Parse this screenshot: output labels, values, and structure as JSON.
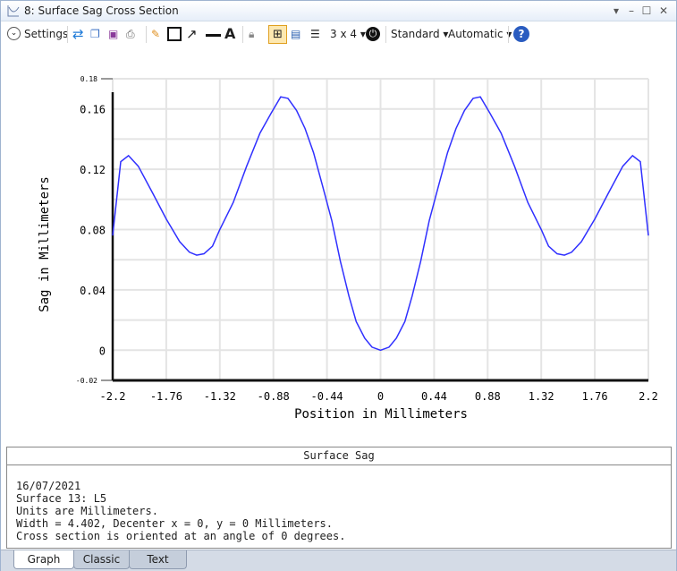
{
  "window": {
    "title": "8: Surface Sag Cross Section"
  },
  "toolbar": {
    "settings": "Settings",
    "layout": "3 x 4",
    "standard": "Standard",
    "automatic": "Automatic",
    "icons": [
      "chevron-down-circle-icon",
      "refresh-icon",
      "copy-icon",
      "save-icon",
      "print-icon",
      "pencil-icon",
      "rectangle-icon",
      "arrow-icon",
      "line-icon",
      "text-icon",
      "lock-icon",
      "fit-icon",
      "window-icon",
      "layers-icon",
      "power-icon",
      "help-icon"
    ]
  },
  "chart_data": {
    "type": "line",
    "title": "",
    "xlabel": "Position in Millimeters",
    "ylabel": "Sag in Millimeters",
    "xlim": [
      -2.2,
      2.2
    ],
    "ylim": [
      -0.02,
      0.18
    ],
    "xticks": [
      "-2.2",
      "-1.76",
      "-1.32",
      "-0.88",
      "-0.44",
      "0",
      "0.44",
      "0.88",
      "1.32",
      "1.76",
      "2.2"
    ],
    "xtick_values": [
      -2.2,
      -1.76,
      -1.32,
      -0.88,
      -0.44,
      0,
      0.44,
      0.88,
      1.32,
      1.76,
      2.2
    ],
    "yticks": [
      "0.16",
      "0.12",
      "0.08",
      "0.04",
      "0"
    ],
    "ytick_values": [
      0.16,
      0.12,
      0.08,
      0.04,
      0
    ],
    "ylim_labels": [
      "0.18",
      "-0.02"
    ],
    "grid": true,
    "color": "#3030ff",
    "x": [
      -2.2,
      -2.134,
      -2.07,
      -1.99,
      -1.87,
      -1.76,
      -1.65,
      -1.57,
      -1.51,
      -1.45,
      -1.38,
      -1.32,
      -1.21,
      -1.1,
      -0.99,
      -0.9,
      -0.82,
      -0.76,
      -0.69,
      -0.62,
      -0.55,
      -0.48,
      -0.4,
      -0.33,
      -0.26,
      -0.2,
      -0.13,
      -0.07,
      0,
      0.07,
      0.13,
      0.2,
      0.26,
      0.33,
      0.4,
      0.48,
      0.55,
      0.62,
      0.69,
      0.76,
      0.82,
      0.9,
      0.99,
      1.1,
      1.21,
      1.32,
      1.38,
      1.45,
      1.51,
      1.57,
      1.65,
      1.76,
      1.87,
      1.99,
      2.07,
      2.134,
      2.2
    ],
    "y": [
      0.076,
      0.125,
      0.129,
      0.122,
      0.104,
      0.087,
      0.072,
      0.065,
      0.063,
      0.064,
      0.069,
      0.08,
      0.098,
      0.122,
      0.144,
      0.157,
      0.168,
      0.167,
      0.159,
      0.147,
      0.131,
      0.11,
      0.086,
      0.059,
      0.036,
      0.019,
      0.008,
      0.002,
      0,
      0.002,
      0.008,
      0.019,
      0.036,
      0.059,
      0.086,
      0.11,
      0.131,
      0.147,
      0.159,
      0.167,
      0.168,
      0.157,
      0.144,
      0.122,
      0.098,
      0.08,
      0.069,
      0.064,
      0.063,
      0.065,
      0.072,
      0.087,
      0.104,
      0.122,
      0.129,
      0.125,
      0.076
    ]
  },
  "panel": {
    "header": "Surface Sag",
    "lines": [
      "16/07/2021",
      "Surface 13: L5",
      "Units are Millimeters.",
      "Width = 4.402, Decenter x = 0, y = 0 Millimeters.",
      "Cross section is oriented at an angle of 0 degrees."
    ]
  },
  "tabs": [
    "Graph",
    "Classic",
    "Text"
  ]
}
